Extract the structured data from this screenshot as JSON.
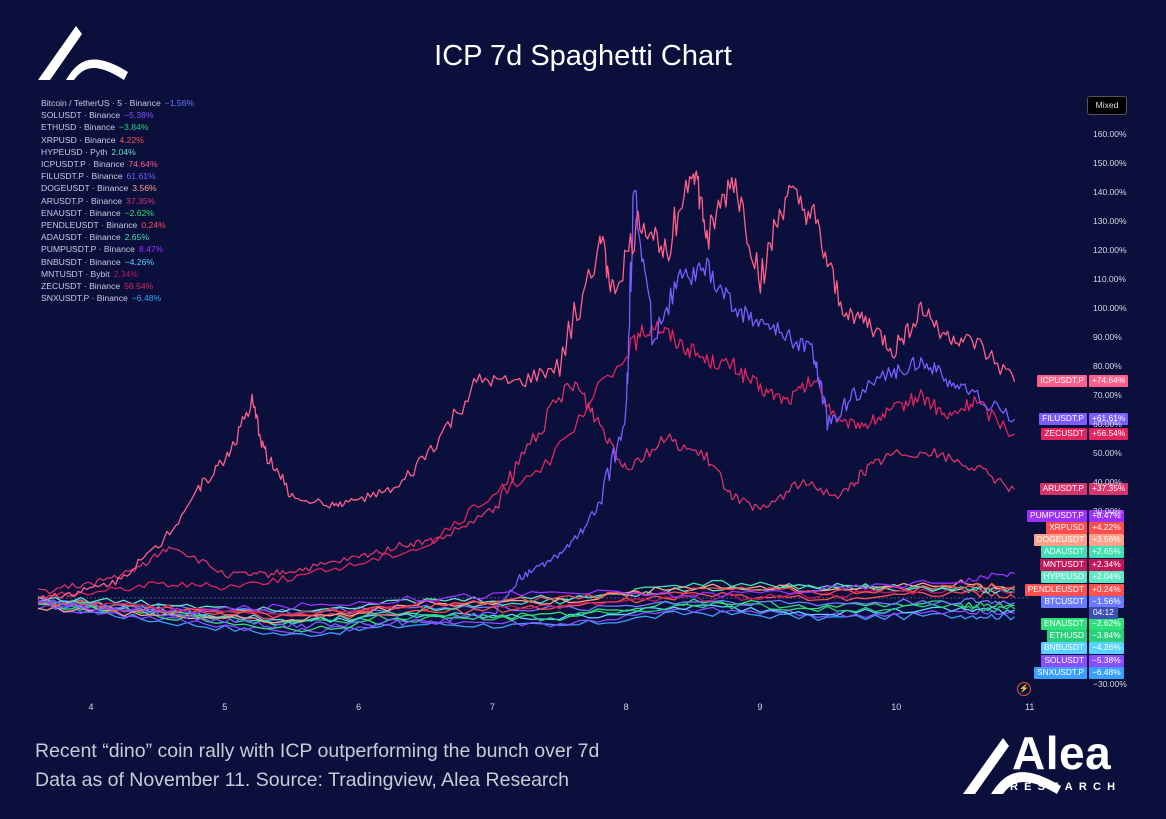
{
  "title": "ICP 7d Spaghetti Chart",
  "mixed_button": "Mixed",
  "caption": {
    "line1": "Recent “dino” coin rally with ICP outperforming the bunch over 7d",
    "line2": "Data as of November 11. Source: Tradingview, Alea Research"
  },
  "brand": {
    "name": "Alea",
    "sub": "RESEARCH"
  },
  "legend": [
    {
      "label": "Bitcoin / TetherUS · 5 · Binance",
      "change": "−1.56%",
      "color": "#6b7bff"
    },
    {
      "label": "SOLUSDT · Binance",
      "change": "−5.38%",
      "color": "#8a4dff"
    },
    {
      "label": "ETHUSD · Binance",
      "change": "−3.84%",
      "color": "#28d07a"
    },
    {
      "label": "XRPUSD · Binance",
      "change": "4.22%",
      "color": "#ff4d4d"
    },
    {
      "label": "HYPEUSD · Pyth",
      "change": "2.04%",
      "color": "#5fe6c4"
    },
    {
      "label": "ICPUSDT.P · Binance",
      "change": "74.64%",
      "color": "#ff5f8a"
    },
    {
      "label": "FILUSDT.P · Binance",
      "change": "61.61%",
      "color": "#7a5cff"
    },
    {
      "label": "DOGEUSDT · Binance",
      "change": "3.56%",
      "color": "#ffa08a"
    },
    {
      "label": "ARUSDT.P · Binance",
      "change": "37.35%",
      "color": "#d8336a"
    },
    {
      "label": "ENAUSDT · Binance",
      "change": "−2.62%",
      "color": "#2ee07a"
    },
    {
      "label": "PENDLEUSDT · Binance",
      "change": "0.24%",
      "color": "#ff5050"
    },
    {
      "label": "ADAUSDT · Binance",
      "change": "2.65%",
      "color": "#3fe0b0"
    },
    {
      "label": "PUMPUSDT.P · Binance",
      "change": "8.47%",
      "color": "#9b30ff"
    },
    {
      "label": "BNBUSDT · Binance",
      "change": "−4.26%",
      "color": "#5ad2ff"
    },
    {
      "label": "MNTUSDT · Bybit",
      "change": "2.34%",
      "color": "#c2185b"
    },
    {
      "label": "ZECUSDT · Binance",
      "change": "56.54%",
      "color": "#e0245e"
    },
    {
      "label": "SNXUSDT.P · Binance",
      "change": "−6.48%",
      "color": "#3aa0ff"
    }
  ],
  "tags": [
    {
      "name": "ICPUSDT.P",
      "value": "+74.64%",
      "color": "#ff5f8a"
    },
    {
      "name": "FILUSDT.P",
      "value": "+61.61%",
      "color": "#7a5cff"
    },
    {
      "name": "ZECUSDT",
      "value": "+56.54%",
      "color": "#e0245e"
    },
    {
      "name": "ARUSDT.P",
      "value": "+37.35%",
      "color": "#d8336a"
    },
    {
      "name": "PUMPUSDT.P",
      "value": "+8.47%",
      "color": "#9b30ff"
    },
    {
      "name": "XRPUSD",
      "value": "+4.22%",
      "color": "#ff4d4d"
    },
    {
      "name": "DOGEUSDT",
      "value": "+3.56%",
      "color": "#ffa08a"
    },
    {
      "name": "ADAUSDT",
      "value": "+2.65%",
      "color": "#3fe0b0"
    },
    {
      "name": "MNTUSDT",
      "value": "+2.34%",
      "color": "#c2185b"
    },
    {
      "name": "HYPEUSD",
      "value": "+2.04%",
      "color": "#5fe6c4"
    },
    {
      "name": "PENDLEUSDT",
      "value": "+0.24%",
      "color": "#ff5050"
    },
    {
      "name": "BTCUSDT",
      "value": "−1.56%",
      "color": "#6b7bff"
    },
    {
      "name": "ENAUSDT",
      "value": "−2.62%",
      "color": "#2ee07a"
    },
    {
      "name": "ETHUSD",
      "value": "−3.84%",
      "color": "#28d07a"
    },
    {
      "name": "BNBUSDT",
      "value": "−4.26%",
      "color": "#5ad2ff"
    },
    {
      "name": "SOLUSDT",
      "value": "−5.38%",
      "color": "#8a4dff"
    },
    {
      "name": "SNXUSDT.P",
      "value": "−6.48%",
      "color": "#3aa0ff"
    }
  ],
  "countdown": "04:12",
  "chart_data": {
    "type": "line",
    "title": "ICP 7d Spaghetti Chart",
    "xlabel": "",
    "ylabel": "% change",
    "x_ticks": [
      "4",
      "5",
      "6",
      "7",
      "8",
      "9",
      "10",
      "11"
    ],
    "x_range": [
      3.6,
      11.0
    ],
    "y_ticks": [
      "160.00%",
      "150.00%",
      "140.00%",
      "130.00%",
      "120.00%",
      "110.00%",
      "100.00%",
      "90.00%",
      "80.00%",
      "70.00%",
      "60.00%",
      "50.00%",
      "40.00%",
      "30.00%",
      "−30.00%"
    ],
    "y_range": [
      -30,
      165
    ],
    "series": [
      {
        "name": "ICPUSDT.P",
        "color": "#ff5f8a",
        "x": [
          3.6,
          3.9,
          4.2,
          4.5,
          4.8,
          5.0,
          5.2,
          5.3,
          5.5,
          5.8,
          6.0,
          6.3,
          6.6,
          6.9,
          7.2,
          7.5,
          7.8,
          7.9,
          8.1,
          8.3,
          8.5,
          8.6,
          8.8,
          9.0,
          9.2,
          9.4,
          9.6,
          9.8,
          10.0,
          10.2,
          10.4,
          10.6,
          10.9
        ],
        "y": [
          0,
          2,
          6,
          18,
          38,
          48,
          67,
          50,
          35,
          32,
          34,
          38,
          55,
          75,
          74,
          80,
          125,
          105,
          130,
          120,
          150,
          124,
          145,
          110,
          140,
          130,
          100,
          95,
          85,
          100,
          90,
          88,
          74.6
        ]
      },
      {
        "name": "FILUSDT.P",
        "color": "#7a5cff",
        "x": [
          3.6,
          4.0,
          4.5,
          5.0,
          5.5,
          6.0,
          6.5,
          7.0,
          7.2,
          7.4,
          7.6,
          7.8,
          8.0,
          8.05,
          8.2,
          8.4,
          8.6,
          8.8,
          9.0,
          9.2,
          9.4,
          9.5,
          9.7,
          10.0,
          10.2,
          10.4,
          10.6,
          10.9
        ],
        "y": [
          -1,
          -3,
          -5,
          -8,
          -10,
          -9,
          -8,
          -6,
          7,
          12,
          19,
          32,
          65,
          140,
          90,
          110,
          113,
          100,
          95,
          90,
          85,
          60,
          70,
          78,
          82,
          75,
          70,
          61.6
        ]
      },
      {
        "name": "ZECUSDT",
        "color": "#e0245e",
        "x": [
          3.6,
          4.0,
          4.5,
          5.0,
          5.5,
          6.0,
          6.5,
          7.0,
          7.5,
          8.0,
          8.2,
          8.4,
          8.6,
          8.8,
          9.0,
          9.2,
          9.4,
          9.6,
          9.8,
          10.0,
          10.2,
          10.4,
          10.6,
          10.9
        ],
        "y": [
          0,
          2,
          5,
          4,
          7,
          12,
          18,
          35,
          50,
          85,
          95,
          88,
          82,
          80,
          72,
          68,
          75,
          60,
          60,
          65,
          70,
          62,
          68,
          56.5
        ]
      },
      {
        "name": "ARUSDT.P",
        "color": "#d8336a",
        "x": [
          3.6,
          4.0,
          4.3,
          4.6,
          5.0,
          5.3,
          5.6,
          6.0,
          6.3,
          6.6,
          7.0,
          7.3,
          7.6,
          7.8,
          8.0,
          8.3,
          8.6,
          8.8,
          9.0,
          9.3,
          9.6,
          9.8,
          10.0,
          10.3,
          10.6,
          10.9
        ],
        "y": [
          2,
          5,
          9,
          18,
          8,
          8,
          10,
          14,
          18,
          20,
          30,
          55,
          75,
          60,
          45,
          55,
          48,
          35,
          30,
          40,
          35,
          45,
          50,
          50,
          45,
          37.4
        ]
      },
      {
        "name": "PUMPUSDT.P",
        "color": "#9b30ff",
        "x": [
          3.6,
          4.5,
          5.5,
          6.5,
          7.5,
          8.5,
          9.5,
          10.5,
          10.9
        ],
        "y": [
          -2,
          -5,
          -3,
          0,
          2,
          1,
          3,
          6,
          8.5
        ]
      },
      {
        "name": "XRPUSD",
        "color": "#ff4d4d",
        "x": [
          3.6,
          4.5,
          5.5,
          6.5,
          7.5,
          8.5,
          9.5,
          10.5,
          10.9
        ],
        "y": [
          -2,
          -4,
          -6,
          -3,
          0,
          3,
          2,
          4,
          4.2
        ]
      },
      {
        "name": "DOGEUSDT",
        "color": "#ffa08a",
        "x": [
          3.6,
          4.5,
          5.5,
          6.5,
          7.5,
          8.5,
          9.5,
          10.5,
          10.9
        ],
        "y": [
          -3,
          -6,
          -8,
          -2,
          -1,
          4,
          3,
          5,
          3.6
        ]
      },
      {
        "name": "ADAUSDT",
        "color": "#3fe0b0",
        "x": [
          3.6,
          4.5,
          5.5,
          6.5,
          7.5,
          8.5,
          9.5,
          10.5,
          10.9
        ],
        "y": [
          -1,
          -5,
          -9,
          -4,
          -1,
          5,
          4,
          3,
          2.7
        ]
      },
      {
        "name": "MNTUSDT",
        "color": "#c2185b",
        "x": [
          3.6,
          4.5,
          5.5,
          6.5,
          7.5,
          8.5,
          9.5,
          10.5,
          10.9
        ],
        "y": [
          -2,
          -3,
          -5,
          -2,
          -3,
          0,
          1,
          3,
          2.3
        ]
      },
      {
        "name": "HYPEUSD",
        "color": "#5fe6c4",
        "x": [
          3.6,
          4.5,
          5.5,
          6.5,
          7.5,
          8.5,
          9.5,
          10.5,
          10.9
        ],
        "y": [
          0,
          -2,
          -4,
          -1,
          0,
          3,
          4,
          3,
          2.0
        ]
      },
      {
        "name": "PENDLEUSDT",
        "color": "#ff5050",
        "x": [
          3.6,
          4.5,
          5.5,
          6.5,
          7.5,
          8.5,
          9.5,
          10.5,
          10.9
        ],
        "y": [
          -1,
          -4,
          -7,
          -5,
          -3,
          1,
          0,
          2,
          0.2
        ]
      },
      {
        "name": "BTCUSDT",
        "color": "#6b7bff",
        "x": [
          3.6,
          4.5,
          5.5,
          6.5,
          7.5,
          8.5,
          9.5,
          10.5,
          10.9
        ],
        "y": [
          -1,
          -3,
          -5,
          -3,
          -4,
          -1,
          -2,
          -1,
          -1.6
        ]
      },
      {
        "name": "ENAUSDT",
        "color": "#2ee07a",
        "x": [
          3.6,
          4.5,
          5.5,
          6.5,
          7.5,
          8.5,
          9.5,
          10.5,
          10.9
        ],
        "y": [
          -2,
          -6,
          -11,
          -7,
          -6,
          -1,
          -3,
          -2,
          -2.6
        ]
      },
      {
        "name": "ETHUSD",
        "color": "#28d07a",
        "x": [
          3.6,
          4.5,
          5.5,
          6.5,
          7.5,
          8.5,
          9.5,
          10.5,
          10.9
        ],
        "y": [
          -2,
          -5,
          -9,
          -6,
          -7,
          -2,
          -4,
          -3,
          -3.8
        ]
      },
      {
        "name": "BNBUSDT",
        "color": "#5ad2ff",
        "x": [
          3.6,
          4.5,
          5.5,
          6.5,
          7.5,
          8.5,
          9.5,
          10.5,
          10.9
        ],
        "y": [
          -1,
          -4,
          -8,
          -6,
          -7,
          -3,
          -5,
          -4,
          -4.3
        ]
      },
      {
        "name": "SOLUSDT",
        "color": "#8a4dff",
        "x": [
          3.6,
          4.5,
          5.5,
          6.5,
          7.5,
          8.5,
          9.5,
          10.5,
          10.9
        ],
        "y": [
          -3,
          -7,
          -12,
          -8,
          -9,
          -4,
          -6,
          -5,
          -5.4
        ]
      },
      {
        "name": "SNXUSDT.P",
        "color": "#3aa0ff",
        "x": [
          3.6,
          4.5,
          5.5,
          6.5,
          7.5,
          8.5,
          9.5,
          10.5,
          10.9
        ],
        "y": [
          -2,
          -8,
          -13,
          -9,
          -10,
          -5,
          -7,
          -6,
          -6.5
        ]
      }
    ]
  }
}
